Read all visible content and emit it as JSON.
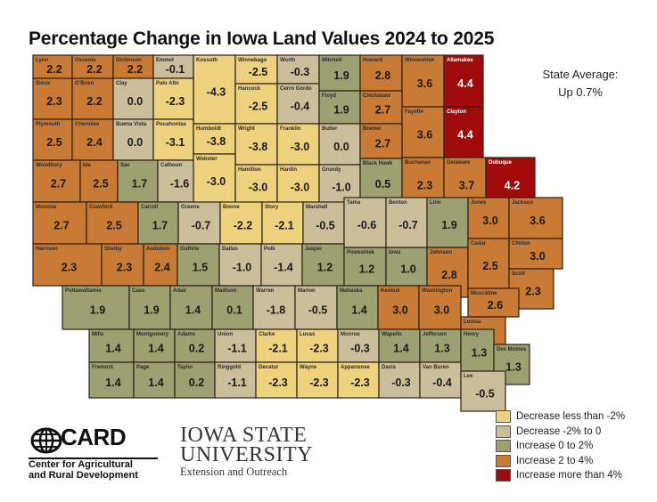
{
  "title": "Percentage Change in Iowa Land Values 2024 to 2025",
  "state_average": {
    "label": "State Average:",
    "value": "Up 0.7%"
  },
  "colors": {
    "decrease_lt_neg2": "#EFD27E",
    "decrease_neg2_to_0": "#CBBE9B",
    "increase_0_to_2": "#9DA070",
    "increase_2_to_4": "#C97B36",
    "increase_gt_4": "#A00A0A",
    "border": "#2b2116"
  },
  "legend": [
    {
      "label": "Decrease less than -2%",
      "color": "#EFD27E"
    },
    {
      "label": "Decrease -2% to 0",
      "color": "#CBBE9B"
    },
    {
      "label": "Increase 0 to 2%",
      "color": "#9DA070"
    },
    {
      "label": "Increase 2 to 4%",
      "color": "#C97B36"
    },
    {
      "label": "Increase more than 4%",
      "color": "#A00A0A"
    }
  ],
  "logos": {
    "card": {
      "wordmark": "CARD",
      "line1": "Center for Agricultural",
      "line2": "and Rural Development"
    },
    "isu": {
      "line1": "IOWA STATE",
      "line2": "UNIVERSITY",
      "line3": "Extension and Outreach"
    }
  },
  "counties": [
    {
      "name": "Lyon",
      "value": "2.2"
    },
    {
      "name": "Osceola",
      "value": "2.2"
    },
    {
      "name": "Dickinson",
      "value": "2.2"
    },
    {
      "name": "Emmet",
      "value": "-0.1"
    },
    {
      "name": "Kossuth",
      "value": "-4.3"
    },
    {
      "name": "Winnebago",
      "value": "-2.5"
    },
    {
      "name": "Worth",
      "value": "-0.3"
    },
    {
      "name": "Mitchell",
      "value": "1.9"
    },
    {
      "name": "Howard",
      "value": "2.8"
    },
    {
      "name": "Winneshiek",
      "value": "3.6"
    },
    {
      "name": "Allamakee",
      "value": "4.4"
    },
    {
      "name": "Sioux",
      "value": "2.3"
    },
    {
      "name": "O'Brien",
      "value": "2.2"
    },
    {
      "name": "Clay",
      "value": "0.0"
    },
    {
      "name": "Palo Alto",
      "value": "-2.3"
    },
    {
      "name": "Hancock",
      "value": "-2.5"
    },
    {
      "name": "Cerro Gordo",
      "value": "-0.4"
    },
    {
      "name": "Floyd",
      "value": "1.9"
    },
    {
      "name": "Chickasaw",
      "value": "2.7"
    },
    {
      "name": "Fayette",
      "value": "3.6"
    },
    {
      "name": "Clayton",
      "value": "4.4"
    },
    {
      "name": "Plymouth",
      "value": "2.5"
    },
    {
      "name": "Cherokee",
      "value": "2.4"
    },
    {
      "name": "Buena Vista",
      "value": "0.0"
    },
    {
      "name": "Pocahontas",
      "value": "-3.1"
    },
    {
      "name": "Humboldt",
      "value": "-3.8"
    },
    {
      "name": "Wright",
      "value": "-3.8"
    },
    {
      "name": "Franklin",
      "value": "-3.0"
    },
    {
      "name": "Butler",
      "value": "0.0"
    },
    {
      "name": "Bremer",
      "value": "2.7"
    },
    {
      "name": "Woodbury",
      "value": "2.7"
    },
    {
      "name": "Ida",
      "value": "2.5"
    },
    {
      "name": "Sac",
      "value": "1.7"
    },
    {
      "name": "Calhoun",
      "value": "-1.6"
    },
    {
      "name": "Webster",
      "value": "-3.0"
    },
    {
      "name": "Hamilton",
      "value": "-3.0"
    },
    {
      "name": "Hardin",
      "value": "-3.0"
    },
    {
      "name": "Grundy",
      "value": "-1.0"
    },
    {
      "name": "Black Hawk",
      "value": "0.5"
    },
    {
      "name": "Buchanan",
      "value": "2.3"
    },
    {
      "name": "Delaware",
      "value": "3.7"
    },
    {
      "name": "Dubuque",
      "value": "4.2"
    },
    {
      "name": "Monona",
      "value": "2.7"
    },
    {
      "name": "Crawford",
      "value": "2.5"
    },
    {
      "name": "Carroll",
      "value": "1.7"
    },
    {
      "name": "Greene",
      "value": "-0.7"
    },
    {
      "name": "Boone",
      "value": "-2.2"
    },
    {
      "name": "Story",
      "value": "-2.1"
    },
    {
      "name": "Marshall",
      "value": "-0.5"
    },
    {
      "name": "Tama",
      "value": "-0.6"
    },
    {
      "name": "Benton",
      "value": "-0.7"
    },
    {
      "name": "Linn",
      "value": "1.9"
    },
    {
      "name": "Jones",
      "value": "3.0"
    },
    {
      "name": "Jackson",
      "value": "3.6"
    },
    {
      "name": "Harrison",
      "value": "2.3"
    },
    {
      "name": "Shelby",
      "value": "2.3"
    },
    {
      "name": "Audubon",
      "value": "2.4"
    },
    {
      "name": "Guthrie",
      "value": "1.5"
    },
    {
      "name": "Dallas",
      "value": "-1.0"
    },
    {
      "name": "Polk",
      "value": "-1.4"
    },
    {
      "name": "Jasper",
      "value": "1.2"
    },
    {
      "name": "Poweshiek",
      "value": "1.2"
    },
    {
      "name": "Iowa",
      "value": "1.0"
    },
    {
      "name": "Johnson",
      "value": "2.8"
    },
    {
      "name": "Cedar",
      "value": "2.5"
    },
    {
      "name": "Clinton",
      "value": "3.0"
    },
    {
      "name": "Scott",
      "value": "2.3"
    },
    {
      "name": "Pottawattamie",
      "value": "1.9"
    },
    {
      "name": "Cass",
      "value": "1.9"
    },
    {
      "name": "Adair",
      "value": "1.4"
    },
    {
      "name": "Madison",
      "value": "0.1"
    },
    {
      "name": "Warren",
      "value": "-1.8"
    },
    {
      "name": "Marion",
      "value": "-0.5"
    },
    {
      "name": "Mahaska",
      "value": "1.4"
    },
    {
      "name": "Keokuk",
      "value": "3.0"
    },
    {
      "name": "Washington",
      "value": "3.0"
    },
    {
      "name": "Muscatine",
      "value": "2.6"
    },
    {
      "name": "Louisa",
      "value": "2.8"
    },
    {
      "name": "Mills",
      "value": "1.4"
    },
    {
      "name": "Montgomery",
      "value": "1.4"
    },
    {
      "name": "Adams",
      "value": "0.2"
    },
    {
      "name": "Union",
      "value": "-1.1"
    },
    {
      "name": "Clarke",
      "value": "-2.1"
    },
    {
      "name": "Lucas",
      "value": "-2.3"
    },
    {
      "name": "Monroe",
      "value": "-0.3"
    },
    {
      "name": "Wapello",
      "value": "1.4"
    },
    {
      "name": "Jefferson",
      "value": "1.3"
    },
    {
      "name": "Henry",
      "value": "1.3"
    },
    {
      "name": "Des Moines",
      "value": "1.3"
    },
    {
      "name": "Fremont",
      "value": "1.4"
    },
    {
      "name": "Page",
      "value": "1.4"
    },
    {
      "name": "Taylor",
      "value": "0.2"
    },
    {
      "name": "Ringgold",
      "value": "-1.1"
    },
    {
      "name": "Decatur",
      "value": "-2.3"
    },
    {
      "name": "Wayne",
      "value": "-2.3"
    },
    {
      "name": "Appanoose",
      "value": "-2.3"
    },
    {
      "name": "Davis",
      "value": "-0.3"
    },
    {
      "name": "Van Buren",
      "value": "-0.4"
    },
    {
      "name": "Lee",
      "value": "-0.5"
    }
  ]
}
